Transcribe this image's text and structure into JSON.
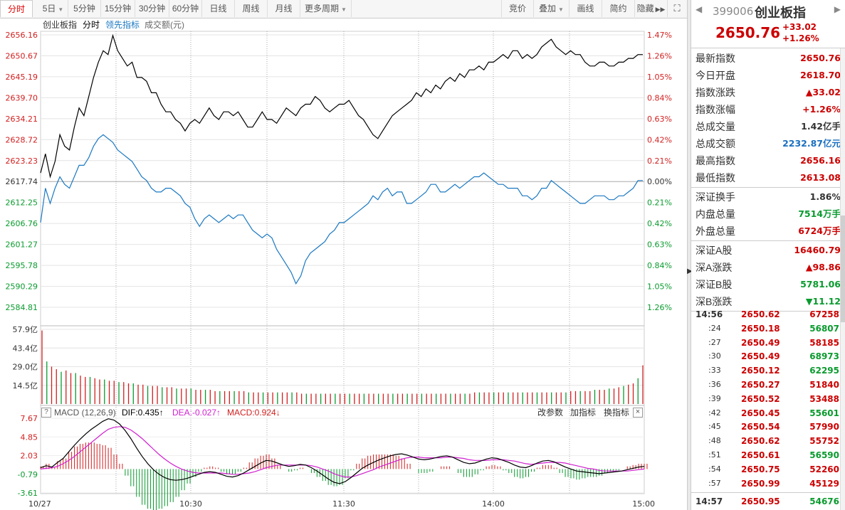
{
  "toolbar": {
    "periods": [
      "分时",
      "5日",
      "5分钟",
      "15分钟",
      "30分钟",
      "60分钟",
      "日线",
      "周线",
      "月线",
      "更多周期"
    ],
    "tools": [
      "竞价",
      "叠加",
      "画线",
      "简约",
      "隐藏"
    ]
  },
  "main_header": {
    "name": "创业板指",
    "mode": "分时",
    "indicator": "领先指标",
    "volume_label": "成交额(元)"
  },
  "macd_header": {
    "title": "MACD (12,26,9)",
    "dif": "DIF:0.435↑",
    "dea": "DEA:-0.027↑",
    "macd": "MACD:0.924↓",
    "actions": [
      "改参数",
      "加指标",
      "换指标"
    ]
  },
  "right_header": {
    "code": "399006",
    "name": "创业板指",
    "price": "2650.76",
    "change": "+33.02",
    "pct": "+1.26%"
  },
  "stats1": [
    {
      "k": "最新指数",
      "v": "2650.76",
      "c": "#c00"
    },
    {
      "k": "今日开盘",
      "v": "2618.70",
      "c": "#c00"
    },
    {
      "k": "指数涨跌",
      "v": "▲33.02",
      "c": "#c00"
    },
    {
      "k": "指数涨幅",
      "v": "+1.26%",
      "c": "#c00"
    },
    {
      "k": "总成交量",
      "v": "1.42亿手",
      "c": "#333"
    },
    {
      "k": "总成交额",
      "v": "2232.87亿元",
      "c": "#1a6fc0"
    },
    {
      "k": "最高指数",
      "v": "2656.16",
      "c": "#c00"
    },
    {
      "k": "最低指数",
      "v": "2613.08",
      "c": "#c00"
    }
  ],
  "stats2": [
    {
      "k": "深证换手",
      "v": "1.86%",
      "c": "#333"
    },
    {
      "k": "内盘总量",
      "v": "7514万手",
      "c": "#0a9b2e"
    },
    {
      "k": "外盘总量",
      "v": "6724万手",
      "c": "#c00"
    }
  ],
  "stats3": [
    {
      "k": "深证A股",
      "v": "16460.79",
      "c": "#c00"
    },
    {
      "k": "深A涨跌",
      "v": "▲98.86",
      "c": "#c00"
    },
    {
      "k": "深证B股",
      "v": "5781.06",
      "c": "#0a9b2e"
    },
    {
      "k": "深B涨跌",
      "v": "▼11.12",
      "c": "#0a9b2e"
    }
  ],
  "ticks": [
    {
      "t": "14:56",
      "p": "2650.62",
      "q": "67258",
      "qc": "#c00"
    },
    {
      "t": ":24",
      "p": "2650.18",
      "q": "56807",
      "qc": "#0a9b2e"
    },
    {
      "t": ":27",
      "p": "2650.49",
      "q": "58185",
      "qc": "#c00"
    },
    {
      "t": ":30",
      "p": "2650.49",
      "q": "68973",
      "qc": "#0a9b2e"
    },
    {
      "t": ":33",
      "p": "2650.12",
      "q": "62295",
      "qc": "#0a9b2e"
    },
    {
      "t": ":36",
      "p": "2650.27",
      "q": "51840",
      "qc": "#c00"
    },
    {
      "t": ":39",
      "p": "2650.52",
      "q": "53488",
      "qc": "#c00"
    },
    {
      "t": ":42",
      "p": "2650.45",
      "q": "55601",
      "qc": "#0a9b2e"
    },
    {
      "t": ":45",
      "p": "2650.54",
      "q": "57990",
      "qc": "#c00"
    },
    {
      "t": ":48",
      "p": "2650.62",
      "q": "55752",
      "qc": "#c00"
    },
    {
      "t": ":51",
      "p": "2650.61",
      "q": "56590",
      "qc": "#0a9b2e"
    },
    {
      "t": ":54",
      "p": "2650.75",
      "q": "52260",
      "qc": "#c00"
    },
    {
      "t": ":57",
      "p": "2650.99",
      "q": "45129",
      "qc": "#c00"
    },
    {
      "t": "14:57",
      "p": "2650.95",
      "q": "54676",
      "qc": "#0a9b2e"
    }
  ],
  "chart_data": {
    "type": "line",
    "price_axis": [
      "2656.16",
      "2650.67",
      "2645.19",
      "2639.70",
      "2634.21",
      "2628.72",
      "2623.23",
      "2617.74",
      "2612.25",
      "2606.76",
      "2601.27",
      "2595.78",
      "2590.29",
      "2584.81"
    ],
    "pct_axis": [
      "1.47%",
      "1.26%",
      "1.05%",
      "0.84%",
      "0.63%",
      "0.42%",
      "0.21%",
      "0.00%",
      "0.21%",
      "0.42%",
      "0.63%",
      "0.84%",
      "1.05%",
      "1.26%"
    ],
    "prev_close": 2617.74,
    "ylim": [
      2584.81,
      2656.16
    ],
    "series": [
      {
        "values": [
          2620,
          2625,
          2619,
          2623,
          2630,
          2627,
          2626,
          2632,
          2637,
          2635,
          2640,
          2645,
          2649,
          2652,
          2651,
          2656,
          2652,
          2650,
          2648,
          2649,
          2645,
          2645,
          2644,
          2641,
          2641,
          2638,
          2636,
          2636,
          2634,
          2633,
          2631,
          2633,
          2634,
          2633,
          2635,
          2637,
          2635,
          2634,
          2636,
          2636,
          2635,
          2636,
          2634,
          2632,
          2632,
          2634,
          2636,
          2634,
          2634,
          2633,
          2635,
          2637,
          2636,
          2635,
          2637,
          2638,
          2638,
          2640,
          2639,
          2637,
          2636,
          2637,
          2638,
          2638,
          2639,
          2637,
          2635,
          2634,
          2632,
          2630,
          2629,
          2631,
          2633,
          2635,
          2636,
          2637,
          2638,
          2639,
          2641,
          2640,
          2642,
          2641,
          2643,
          2642,
          2644,
          2645,
          2644,
          2646,
          2645,
          2647,
          2647,
          2648,
          2647,
          2649,
          2649,
          2650,
          2651,
          2650,
          2652,
          2652,
          2650,
          2651,
          2650,
          2651,
          2653,
          2654,
          2655,
          2653,
          2652,
          2651,
          2652,
          2651,
          2651,
          2649,
          2648,
          2648,
          2649,
          2649,
          2648,
          2648,
          2649,
          2649,
          2650,
          2650,
          2651,
          2651
        ]
      },
      {
        "values": [
          2607,
          2616,
          2612,
          2616,
          2619,
          2617,
          2616,
          2619,
          2622,
          2622,
          2624,
          2627,
          2629,
          2630,
          2629,
          2628,
          2626,
          2625,
          2624,
          2623,
          2621,
          2619,
          2618,
          2616,
          2615,
          2615,
          2616,
          2616,
          2615,
          2614,
          2612,
          2611,
          2608,
          2606,
          2608,
          2609,
          2608,
          2607,
          2608,
          2609,
          2608,
          2609,
          2609,
          2607,
          2605,
          2604,
          2603,
          2604,
          2603,
          2600,
          2598,
          2596,
          2594,
          2591,
          2593,
          2597,
          2599,
          2600,
          2601,
          2602,
          2604,
          2605,
          2607,
          2607,
          2608,
          2609,
          2610,
          2611,
          2612,
          2614,
          2613,
          2615,
          2616,
          2614,
          2615,
          2615,
          2612,
          2612,
          2613,
          2614,
          2615,
          2617,
          2617,
          2615,
          2615,
          2616,
          2617,
          2616,
          2617,
          2618,
          2619,
          2619,
          2620,
          2619,
          2618,
          2617,
          2617,
          2616,
          2616,
          2616,
          2614,
          2614,
          2613,
          2614,
          2616,
          2616,
          2618,
          2617,
          2616,
          2615,
          2614,
          2613,
          2612,
          2612,
          2613,
          2614,
          2614,
          2614,
          2613,
          2613,
          2614,
          2614,
          2615,
          2616,
          2618,
          2618
        ]
      }
    ],
    "volume_axis": [
      "57.9亿",
      "43.4亿",
      "29.0亿",
      "14.5亿"
    ],
    "volume_max": 57.9,
    "volume": [
      57,
      33,
      29,
      27,
      25,
      26,
      24,
      24,
      22,
      21,
      21,
      20,
      19,
      19,
      18,
      18,
      17,
      17,
      16,
      16,
      15,
      15,
      14,
      14,
      14,
      13,
      13,
      13,
      12,
      12,
      12,
      12,
      11,
      11,
      11,
      11,
      10,
      10,
      10,
      10,
      10,
      10,
      10,
      9,
      9,
      9,
      9,
      9,
      9,
      9,
      9,
      9,
      9,
      9,
      8,
      8,
      8,
      8,
      8,
      8,
      8,
      8,
      8,
      8,
      8,
      8,
      8,
      8,
      8,
      8,
      8,
      8,
      8,
      8,
      8,
      8,
      8,
      8,
      8,
      8,
      8,
      8,
      8,
      8,
      8,
      8,
      8,
      8,
      8,
      8,
      9,
      9,
      9,
      9,
      9,
      9,
      9,
      9,
      9,
      9,
      9,
      9,
      9,
      9,
      9,
      9,
      9,
      9,
      9,
      9,
      10,
      10,
      10,
      10,
      10,
      11,
      11,
      11,
      12,
      12,
      13,
      14,
      15,
      16,
      20,
      30
    ],
    "macd_axis": [
      "7.67",
      "4.85",
      "2.03",
      "-0.79",
      "-3.61"
    ],
    "macd_ylim": [
      -3.61,
      7.67
    ],
    "dif": [
      0.2,
      0.5,
      0.3,
      1.0,
      1.6,
      2.6,
      3.6,
      4.5,
      5.3,
      6.0,
      6.6,
      7.2,
      7.6,
      7.4,
      6.8,
      5.8,
      4.6,
      3.2,
      1.9,
      0.8,
      -0.1,
      -0.8,
      -1.3,
      -1.6,
      -1.7,
      -1.6,
      -1.4,
      -1.1,
      -0.8,
      -0.5,
      -0.4,
      -0.5,
      -0.8,
      -1.1,
      -1.2,
      -1.0,
      -0.6,
      -0.1,
      0.4,
      0.9,
      1.3,
      1.2,
      0.9,
      0.6,
      0.4,
      0.5,
      0.7,
      0.6,
      0.2,
      -0.3,
      -0.9,
      -1.5,
      -2.0,
      -2.2,
      -1.9,
      -1.3,
      -0.6,
      0.1,
      0.6,
      1.0,
      1.4,
      1.7,
      2.0,
      2.2,
      2.3,
      2.1,
      1.8,
      1.5,
      1.4,
      1.5,
      1.7,
      1.9,
      2.0,
      1.8,
      1.4,
      1.0,
      0.8,
      0.9,
      1.2,
      1.5,
      1.7,
      1.6,
      1.3,
      1.0,
      0.6,
      0.3,
      0.2,
      0.5,
      0.9,
      1.2,
      1.3,
      1.1,
      0.7,
      0.3,
      0.0,
      -0.3,
      -0.4,
      -0.5,
      -0.6,
      -0.7,
      -0.6,
      -0.5,
      -0.4,
      -0.3,
      -0.1,
      0.1,
      0.3,
      0.4
    ],
    "dea": [
      0.0,
      0.1,
      0.2,
      0.4,
      0.8,
      1.3,
      1.9,
      2.6,
      3.3,
      4.0,
      4.7,
      5.4,
      6.0,
      6.3,
      6.4,
      6.3,
      5.9,
      5.3,
      4.6,
      3.8,
      3.0,
      2.2,
      1.5,
      0.9,
      0.4,
      0.0,
      -0.3,
      -0.5,
      -0.6,
      -0.6,
      -0.6,
      -0.6,
      -0.6,
      -0.7,
      -0.8,
      -0.8,
      -0.7,
      -0.6,
      -0.4,
      -0.1,
      0.2,
      0.4,
      0.6,
      0.6,
      0.6,
      0.6,
      0.6,
      0.6,
      0.5,
      0.3,
      0.0,
      -0.3,
      -0.7,
      -1.0,
      -1.2,
      -1.2,
      -1.0,
      -0.7,
      -0.4,
      -0.1,
      0.3,
      0.6,
      0.9,
      1.2,
      1.5,
      1.7,
      1.8,
      1.8,
      1.7,
      1.7,
      1.7,
      1.7,
      1.8,
      1.8,
      1.7,
      1.6,
      1.4,
      1.3,
      1.3,
      1.3,
      1.4,
      1.4,
      1.4,
      1.3,
      1.2,
      1.0,
      0.8,
      0.7,
      0.8,
      0.9,
      1.0,
      1.0,
      1.0,
      0.9,
      0.7,
      0.5,
      0.3,
      0.1,
      0.0,
      -0.2,
      -0.3,
      -0.3,
      -0.3,
      -0.3,
      -0.3,
      -0.2,
      -0.1,
      0.0
    ],
    "x_labels": [
      "10/27",
      "10:30",
      "11:30",
      "14:00",
      "15:00"
    ],
    "colors": {
      "up": "#d21f1f",
      "down": "#0a9b2e",
      "price": "#000000",
      "leading": "#1a78c2",
      "dif": "#000000",
      "dea": "#d020d0"
    }
  }
}
